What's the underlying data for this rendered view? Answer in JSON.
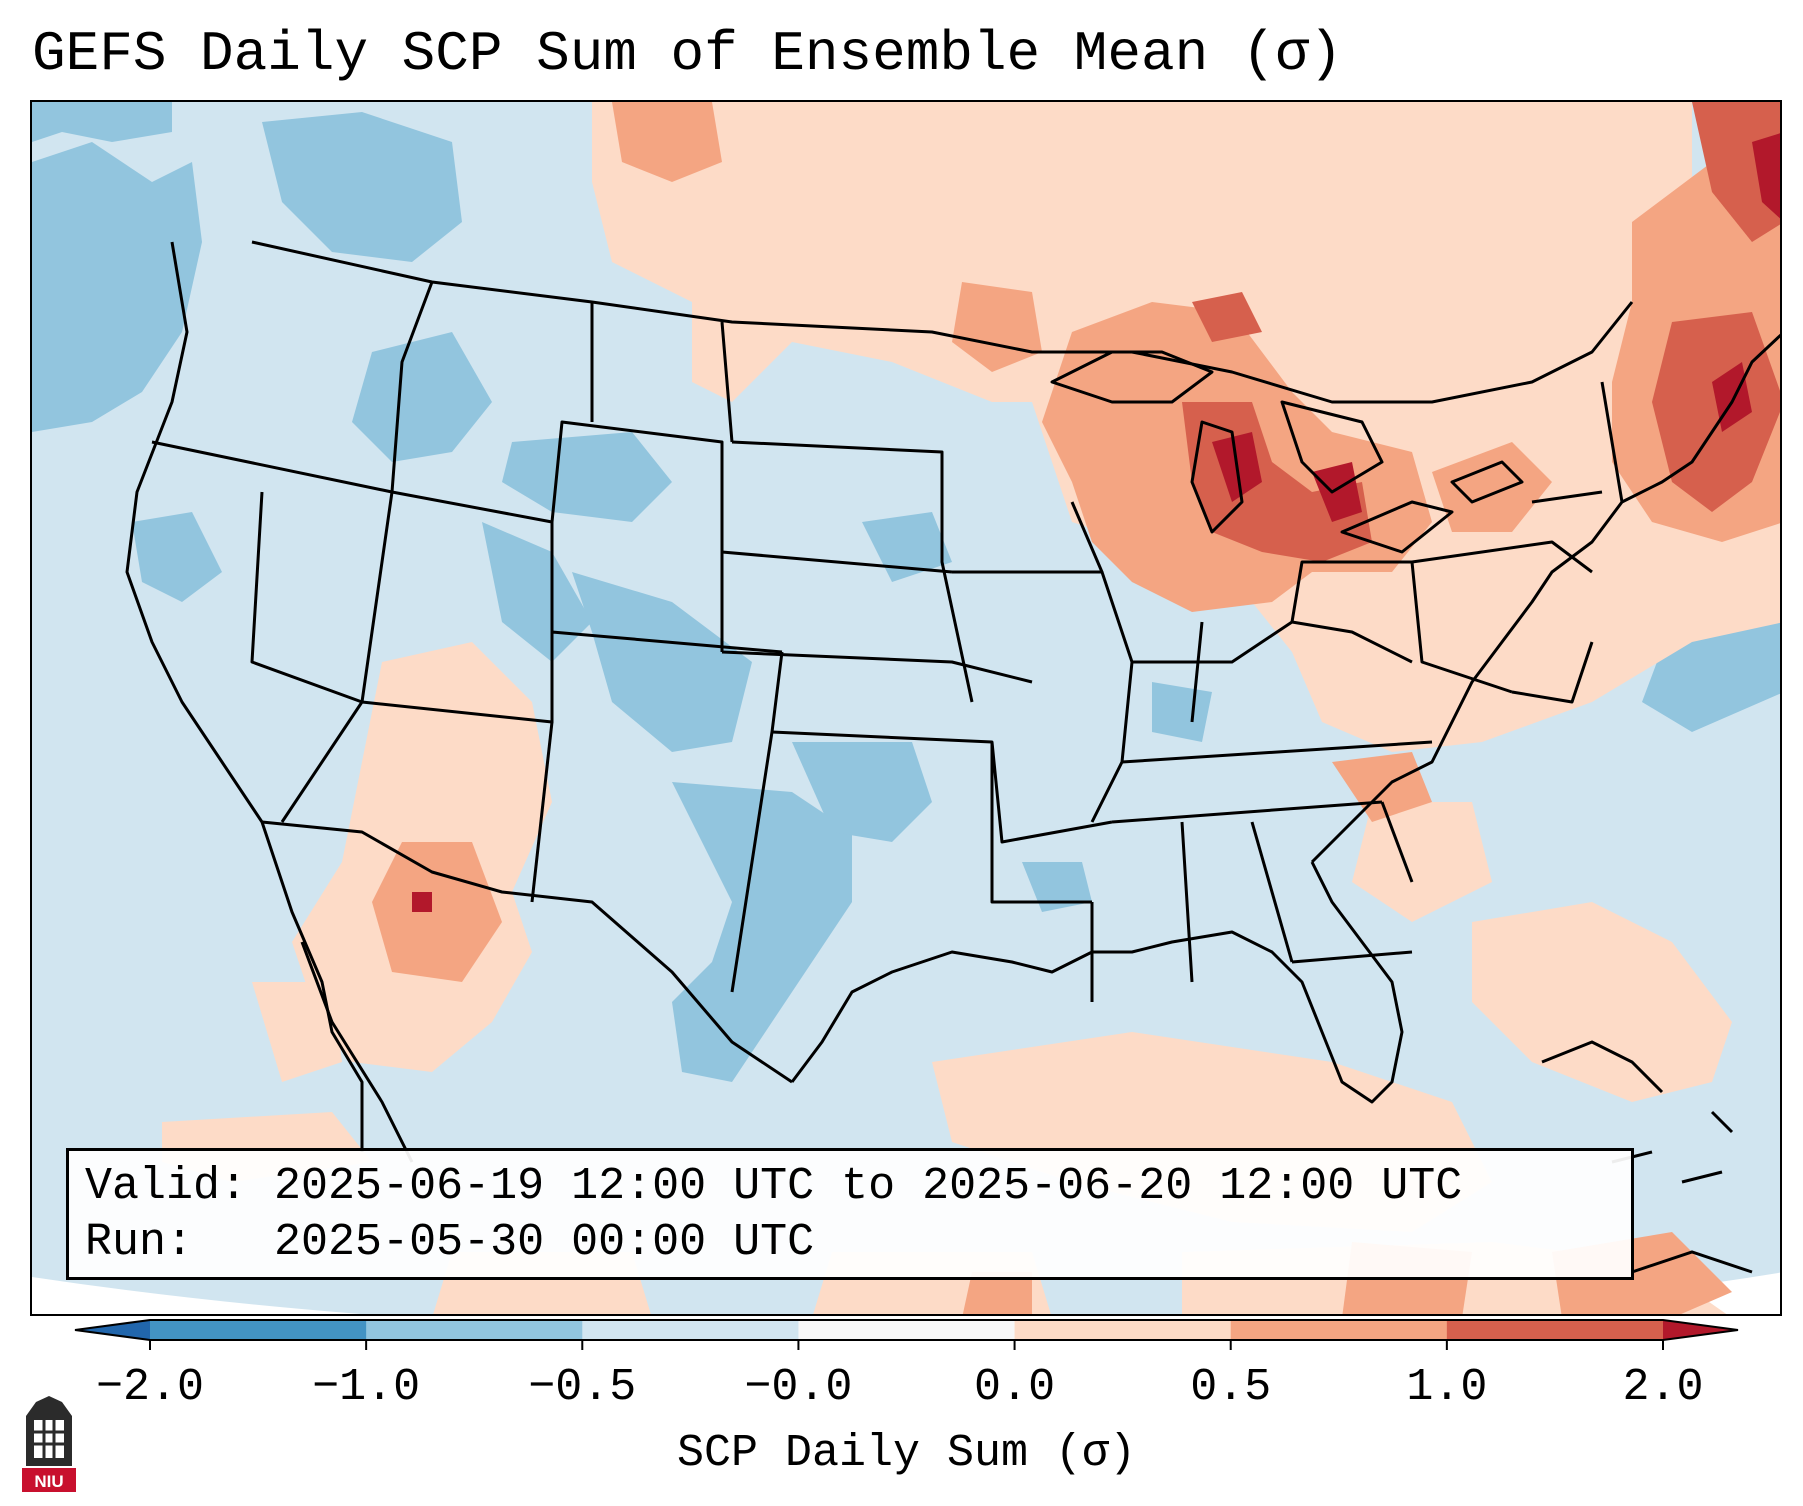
{
  "title": "GEFS Daily SCP Sum of Ensemble Mean (σ)",
  "info": {
    "valid_label": "Valid:",
    "valid_value": "2025-06-19 12:00 UTC to 2025-06-20 12:00 UTC",
    "run_label": "Run:",
    "run_value": "2025-05-30 00:00 UTC"
  },
  "colorbar": {
    "label": "SCP Daily Sum (σ)",
    "ticks": [
      "−2.0",
      "−1.0",
      "−0.5",
      "−0.0",
      "0.0",
      "0.5",
      "1.0",
      "2.0"
    ],
    "colors": [
      "#4393c3",
      "#92c5de",
      "#d1e5f0",
      "#f7f7f7",
      "#fddbc7",
      "#f4a582",
      "#d6604d"
    ],
    "under_color": "#2166ac",
    "over_color": "#b2182b"
  },
  "logo": {
    "text": "NIU"
  },
  "anomaly_regions": [
    {
      "name": "great-lakes",
      "level": "strong-positive"
    },
    {
      "name": "new-england",
      "level": "strong-positive"
    },
    {
      "name": "southern-plains",
      "level": "negative"
    },
    {
      "name": "pacific-northwest-ocean",
      "level": "negative"
    }
  ]
}
